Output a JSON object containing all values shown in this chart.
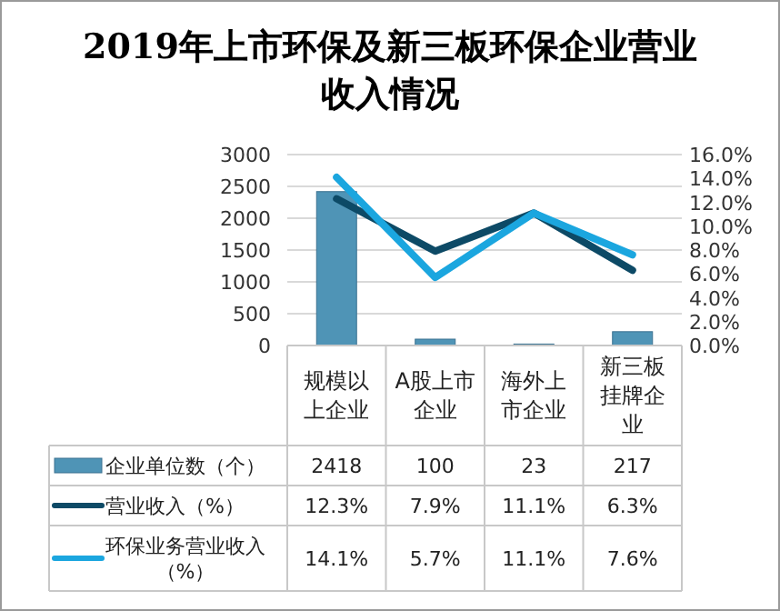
{
  "chart_data": {
    "type": "bar",
    "title": "2019年上市环保及新三板环保企业营业收入情况",
    "categories": [
      "规模以上企业",
      "A股上市企业",
      "海外上市企业",
      "新三板挂牌企业"
    ],
    "series": [
      {
        "name": "企业单位数（个）",
        "color": "#4f94b6",
        "values": [
          2418,
          100,
          23,
          217
        ],
        "value_labels": [
          "2418",
          "100",
          "23",
          "217"
        ]
      },
      {
        "name": "营业收入（%）",
        "type": "line",
        "axis": "y2",
        "color": "#0d4a66",
        "values": [
          12.3,
          7.9,
          11.1,
          6.3
        ],
        "value_labels": [
          "12.3%",
          "7.9%",
          "11.1%",
          "6.3%"
        ]
      },
      {
        "name": "环保业务营业收入（%）",
        "type": "line",
        "axis": "y2",
        "color": "#1ba6df",
        "values": [
          14.1,
          5.7,
          11.1,
          7.6
        ],
        "value_labels": [
          "14.1%",
          "5.7%",
          "11.1%",
          "7.6%"
        ]
      }
    ],
    "ylim": [
      0,
      3000
    ],
    "yticks": [
      0,
      500,
      1000,
      1500,
      2000,
      2500,
      3000
    ],
    "y2lim": [
      0,
      16
    ],
    "y2ticks": [
      {
        "value": 0,
        "label": "0.0%"
      },
      {
        "value": 2,
        "label": "2.0%"
      },
      {
        "value": 4,
        "label": "4.0%"
      },
      {
        "value": 6,
        "label": "6.0%"
      },
      {
        "value": 8,
        "label": "8.0%"
      },
      {
        "value": 10,
        "label": "10.0%"
      },
      {
        "value": 12,
        "label": "12.0%"
      },
      {
        "value": 14,
        "label": "14.0%"
      },
      {
        "value": 16,
        "label": "16.0%"
      }
    ],
    "grid": "y",
    "legend": "bottom"
  }
}
